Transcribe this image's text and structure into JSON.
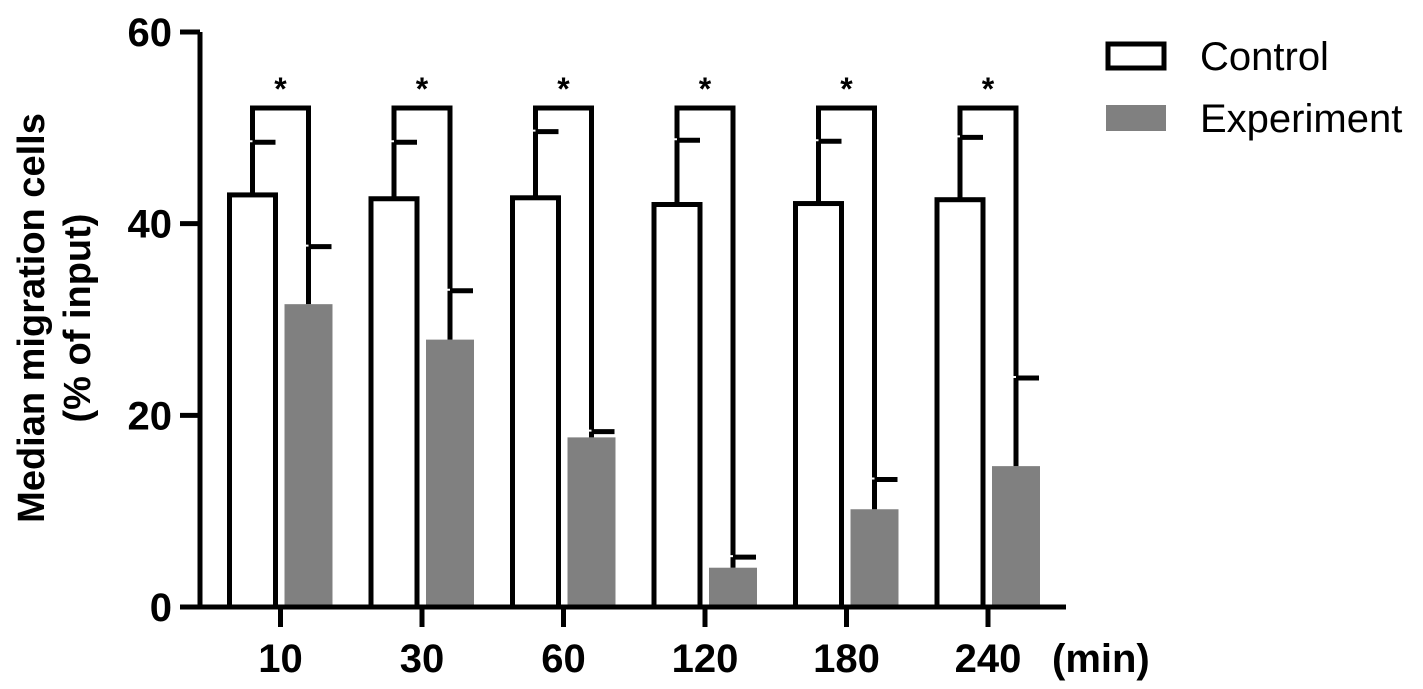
{
  "chart_data": {
    "type": "bar",
    "categories": [
      "10",
      "30",
      "60",
      "120",
      "180",
      "240"
    ],
    "x_unit": "(min)",
    "ylabel_line1": "Median migration cells",
    "ylabel_line2": "(% of input)",
    "ylim": [
      0,
      60
    ],
    "yticks": [
      "0",
      "20",
      "40",
      "60"
    ],
    "legend_position": "top-right",
    "series": [
      {
        "name": "Control",
        "values": [
          43,
          42.6,
          42.7,
          42,
          42.1,
          42.5
        ],
        "errors": [
          5.5,
          5.9,
          6.9,
          6.7,
          6.5,
          6.5
        ],
        "fill": "#ffffff",
        "stroke": "#000000"
      },
      {
        "name": "Experiment",
        "values": [
          31.6,
          27.9,
          17.7,
          4.1,
          10.2,
          14.7
        ],
        "errors": [
          6,
          5.1,
          0.6,
          1.1,
          3.1,
          9.2
        ],
        "fill": "#808080",
        "stroke": "#808080"
      }
    ],
    "significance": [
      "*",
      "*",
      "*",
      "*",
      "*",
      "*"
    ]
  }
}
